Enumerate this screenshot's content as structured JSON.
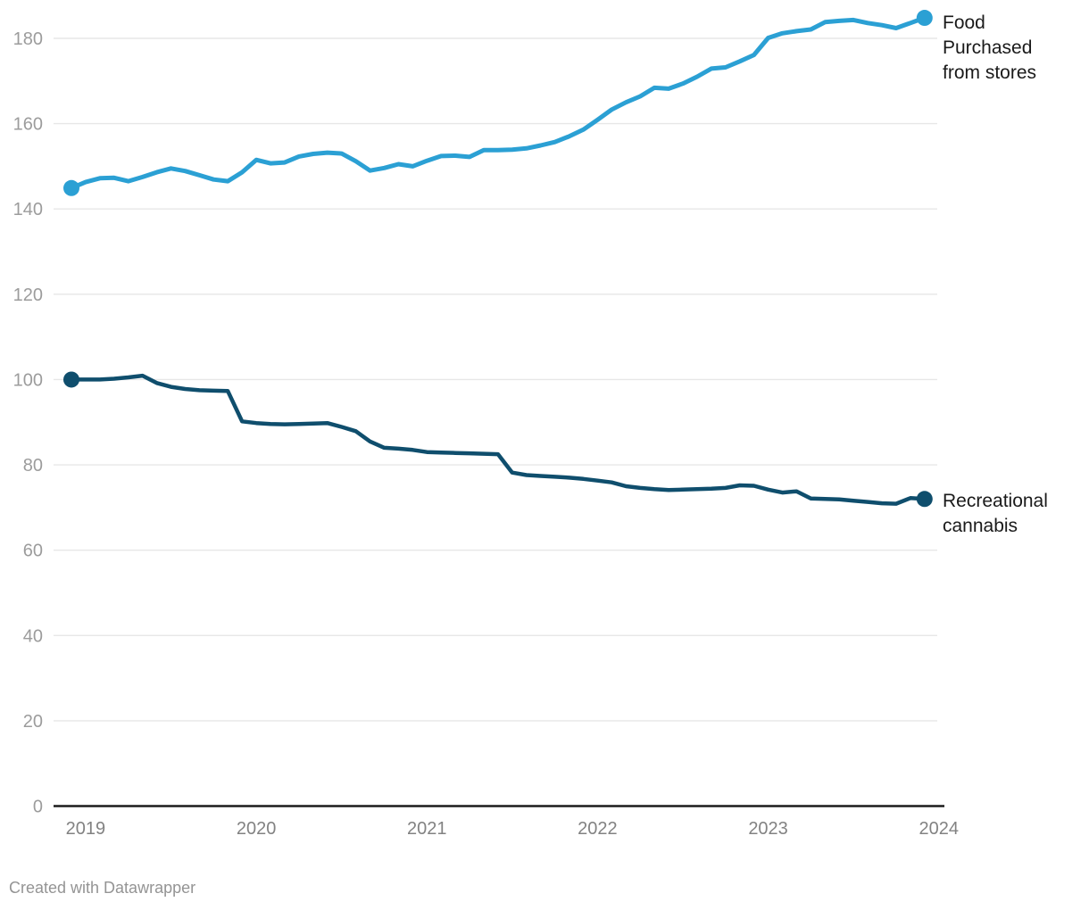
{
  "chart_data": {
    "type": "line",
    "title": "",
    "x_unit": "month",
    "x_start": "2018-12",
    "x_end": "2023-12",
    "x_tick_labels": [
      "2019",
      "2020",
      "2021",
      "2022",
      "2023",
      "2024"
    ],
    "y_ticks": [
      0,
      20,
      40,
      60,
      80,
      100,
      120,
      140,
      160,
      180
    ],
    "ylim": [
      0,
      190
    ],
    "grid": "horizontal",
    "legend_position": "right-of-line-ends",
    "series": [
      {
        "id": "food",
        "name": "Food Purchased from stores",
        "label_display": "Food\nPurchased\nfrom stores",
        "color": "#2ba0d4",
        "stroke_width": 5,
        "values": [
          144.9,
          146.3,
          147.2,
          147.3,
          146.5,
          147.5,
          148.6,
          149.5,
          148.9,
          147.9,
          146.9,
          146.5,
          148.6,
          151.5,
          150.7,
          150.9,
          152.3,
          152.9,
          153.2,
          153.0,
          151.2,
          149.0,
          149.6,
          150.5,
          150.0,
          151.3,
          152.4,
          152.5,
          152.2,
          153.8,
          153.8,
          153.9,
          154.2,
          154.9,
          155.7,
          157.0,
          158.6,
          160.9,
          163.3,
          165.0,
          166.4,
          168.4,
          168.2,
          169.4,
          171.0,
          172.9,
          173.2,
          174.6,
          176.1,
          180.1,
          181.2,
          181.7,
          182.1,
          183.8,
          184.1,
          184.3,
          183.6,
          183.1,
          182.4,
          183.6,
          184.8
        ]
      },
      {
        "id": "cannabis",
        "name": "Recreational cannabis",
        "label_display": "Recreational\ncannabis",
        "color": "#0f4e6d",
        "stroke_width": 4.5,
        "values": [
          100.0,
          100.0,
          100.0,
          100.2,
          100.5,
          100.9,
          99.2,
          98.3,
          97.8,
          97.5,
          97.4,
          97.3,
          90.2,
          89.8,
          89.6,
          89.5,
          89.6,
          89.7,
          89.8,
          88.9,
          87.9,
          85.5,
          84.0,
          83.8,
          83.5,
          83.0,
          82.9,
          82.8,
          82.7,
          82.6,
          82.5,
          78.2,
          77.6,
          77.4,
          77.2,
          77.0,
          76.7,
          76.3,
          75.9,
          75.0,
          74.6,
          74.3,
          74.1,
          74.2,
          74.3,
          74.4,
          74.6,
          75.2,
          75.1,
          74.2,
          73.5,
          73.8,
          72.1,
          72.0,
          71.9,
          71.6,
          71.3,
          71.0,
          70.9,
          72.2,
          72.0
        ]
      }
    ]
  },
  "colors": {
    "grid": "#e7e7e7",
    "axis": "#1c1c1c",
    "y_tick": "#9c9c9c",
    "x_tick": "#828282",
    "legend_text": "#1a1a1a",
    "background": "#ffffff"
  },
  "footer": {
    "text": "Created with Datawrapper"
  }
}
